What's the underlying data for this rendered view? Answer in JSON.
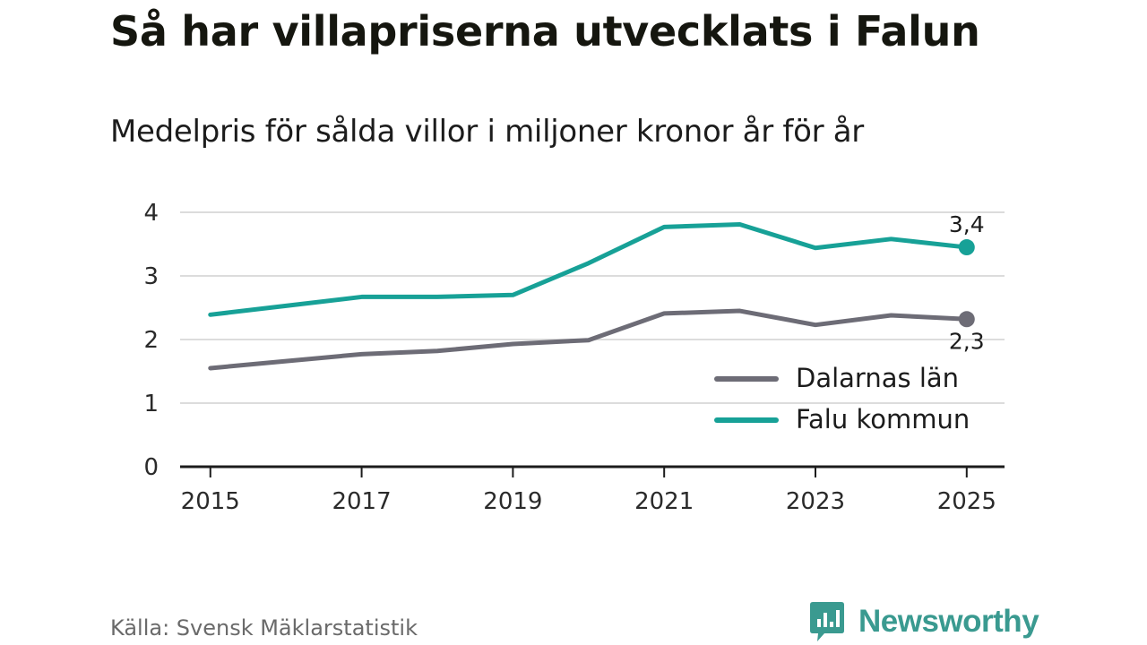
{
  "title": "Så har villapriserna utvecklats i Falun",
  "subtitle": "Medelpris för sålda villor i miljoner kronor år för år",
  "source": "Källa: Svensk Mäklarstatistik",
  "brand": "Newsworthy",
  "colors": {
    "falu": "#17a197",
    "dalarna": "#6d6c76",
    "grid": "#dcdcdc",
    "axis": "#1c1c1c",
    "brand": "#3a9a90"
  },
  "chart_data": {
    "type": "line",
    "title": "Så har villapriserna utvecklats i Falun",
    "xlabel": "",
    "ylabel": "",
    "x": [
      2015,
      2016,
      2017,
      2018,
      2019,
      2020,
      2021,
      2022,
      2023,
      2024,
      2025
    ],
    "xticks": [
      "2015",
      "2017",
      "2019",
      "2021",
      "2023",
      "2025"
    ],
    "xtick_values": [
      2015,
      2017,
      2019,
      2021,
      2023,
      2025
    ],
    "yticks": [
      "0",
      "1",
      "2",
      "3",
      "4"
    ],
    "ytick_values": [
      0,
      1,
      2,
      3,
      4
    ],
    "xlim": [
      2014.6,
      2025.5
    ],
    "ylim": [
      0,
      4
    ],
    "grid": true,
    "legend_position": "bottom-right",
    "series": [
      {
        "name": "Dalarnas län",
        "color_key": "dalarna",
        "values": [
          1.55,
          1.66,
          1.77,
          1.82,
          1.93,
          1.99,
          2.41,
          2.45,
          2.23,
          2.38,
          2.32
        ],
        "end_label": "2,3",
        "end_label_position": "below"
      },
      {
        "name": "Falu kommun",
        "color_key": "falu",
        "values": [
          2.39,
          2.53,
          2.67,
          2.67,
          2.7,
          3.2,
          3.77,
          3.81,
          3.44,
          3.58,
          3.45
        ],
        "end_label": "3,4",
        "end_label_position": "above"
      }
    ]
  }
}
